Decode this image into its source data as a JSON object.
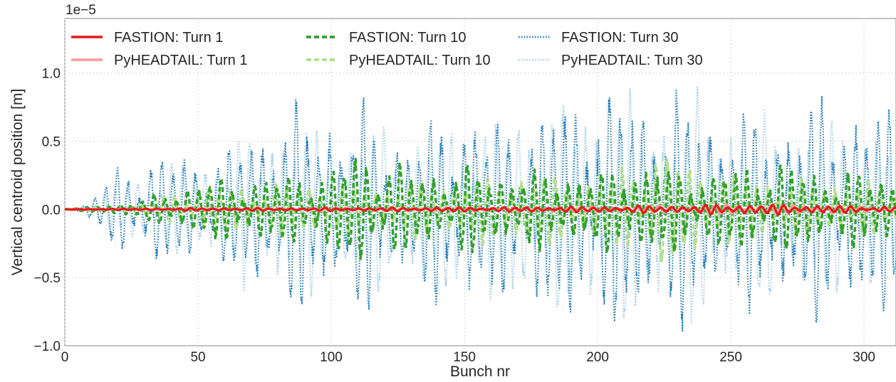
{
  "chart_data": {
    "type": "line",
    "title": "",
    "xlabel": "Bunch nr",
    "ylabel": "Vertical centroid position [m]",
    "y_scale_label": "1e−5",
    "xlim": [
      0,
      312
    ],
    "ylim": [
      -1.0,
      1.4
    ],
    "y_unit_multiplier": 1e-05,
    "xticks": [
      0,
      50,
      100,
      150,
      200,
      250,
      300
    ],
    "xtick_labels": [
      "0",
      "50",
      "100",
      "150",
      "200",
      "250",
      "300"
    ],
    "yticks": [
      -1.0,
      -0.5,
      0.0,
      0.5,
      1.0
    ],
    "ytick_labels": [
      "−1.0",
      "−0.5",
      "0.0",
      "0.5",
      "1.0"
    ],
    "grid": true,
    "legend_placement": "upper-left",
    "legend_columns": 3,
    "series": [
      {
        "name": "FASTION: Turn 1",
        "color": "#e31a1c",
        "style": "solid",
        "envelope_points": [
          [
            0,
            0.002
          ],
          [
            50,
            0.01
          ],
          [
            100,
            0.012
          ],
          [
            150,
            0.016
          ],
          [
            200,
            0.022
          ],
          [
            230,
            0.03
          ],
          [
            260,
            0.04
          ],
          [
            312,
            0.02
          ]
        ],
        "period": 4.2
      },
      {
        "name": "PyHEADTAIL: Turn 1",
        "color": "#fb9a99",
        "style": "solid",
        "envelope_points": [
          [
            0,
            0.004
          ],
          [
            50,
            0.01
          ],
          [
            100,
            0.012
          ],
          [
            150,
            0.016
          ],
          [
            200,
            0.022
          ],
          [
            230,
            0.03
          ],
          [
            260,
            0.04
          ],
          [
            312,
            0.02
          ]
        ],
        "period": 4.2
      },
      {
        "name": "FASTION: Turn 10",
        "color": "#33a02c",
        "style": "dashed",
        "envelope_points": [
          [
            0,
            0.0
          ],
          [
            10,
            0.02
          ],
          [
            30,
            0.08
          ],
          [
            50,
            0.22
          ],
          [
            80,
            0.26
          ],
          [
            100,
            0.3
          ],
          [
            108,
            0.46
          ],
          [
            130,
            0.3
          ],
          [
            150,
            0.32
          ],
          [
            180,
            0.28
          ],
          [
            200,
            0.28
          ],
          [
            210,
            0.38
          ],
          [
            240,
            0.3
          ],
          [
            265,
            0.36
          ],
          [
            290,
            0.28
          ],
          [
            312,
            0.28
          ]
        ],
        "period": 4.2
      },
      {
        "name": "PyHEADTAIL: Turn 10",
        "color": "#b2df8a",
        "style": "dashed",
        "envelope_points": [
          [
            0,
            0.0
          ],
          [
            10,
            0.02
          ],
          [
            30,
            0.06
          ],
          [
            50,
            0.16
          ],
          [
            80,
            0.2
          ],
          [
            100,
            0.18
          ],
          [
            130,
            0.2
          ],
          [
            150,
            0.24
          ],
          [
            180,
            0.28
          ],
          [
            200,
            0.2
          ],
          [
            220,
            0.48
          ],
          [
            245,
            0.28
          ],
          [
            270,
            0.22
          ],
          [
            312,
            0.2
          ]
        ],
        "period": 4.2
      },
      {
        "name": "FASTION: Turn 30",
        "color": "#1f78b4",
        "style": "dotted",
        "envelope_points": [
          [
            0,
            0.0
          ],
          [
            8,
            0.04
          ],
          [
            20,
            0.34
          ],
          [
            30,
            0.4
          ],
          [
            45,
            0.42
          ],
          [
            60,
            0.44
          ],
          [
            73,
            0.68
          ],
          [
            93,
            0.78
          ],
          [
            108,
            0.78
          ],
          [
            130,
            0.56
          ],
          [
            147,
            0.82
          ],
          [
            165,
            0.66
          ],
          [
            196,
            0.94
          ],
          [
            208,
            0.94
          ],
          [
            234,
            0.85
          ],
          [
            250,
            0.72
          ],
          [
            265,
            0.72
          ],
          [
            291,
            0.9
          ],
          [
            312,
            0.72
          ]
        ],
        "period": 4.2
      },
      {
        "name": "PyHEADTAIL: Turn 30",
        "color": "#a6cee3",
        "style": "dotted",
        "envelope_points": [
          [
            0,
            0.0
          ],
          [
            10,
            0.04
          ],
          [
            20,
            0.22
          ],
          [
            40,
            0.34
          ],
          [
            60,
            0.44
          ],
          [
            78,
            0.7
          ],
          [
            95,
            0.6
          ],
          [
            118,
            0.62
          ],
          [
            140,
            0.62
          ],
          [
            160,
            0.72
          ],
          [
            180,
            0.8
          ],
          [
            200,
            0.86
          ],
          [
            218,
            0.85
          ],
          [
            240,
            0.86
          ],
          [
            260,
            0.72
          ],
          [
            282,
            0.7
          ],
          [
            300,
            0.66
          ],
          [
            312,
            0.6
          ]
        ],
        "period": 4.2
      }
    ]
  }
}
